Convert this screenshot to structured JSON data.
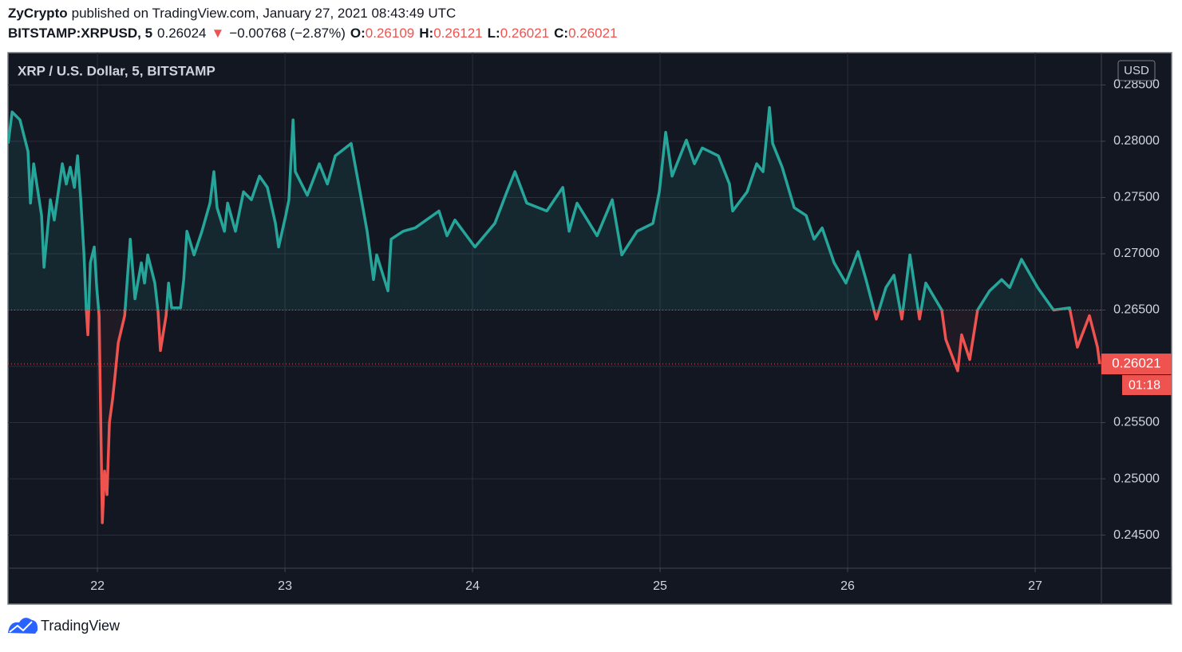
{
  "header": {
    "publisher": "ZyCrypto",
    "published": "published on TradingView.com, January 27, 2021 08:43:49 UTC",
    "quote": [
      {
        "text": "BITSTAMP:XRPUSD, 5",
        "color": "#131722",
        "bold": true
      },
      {
        "text": "0.26024",
        "color": "#131722",
        "bold": false
      },
      {
        "text": "▼",
        "color": "#ef5350",
        "bold": false
      },
      {
        "text": "−0.00768 (−2.87%)",
        "color": "#131722",
        "bold": false
      },
      {
        "text": "O:",
        "color": "#131722",
        "bold": true
      },
      {
        "text": "0.26109",
        "color": "#ef5350",
        "bold": false
      },
      {
        "text": "H:",
        "color": "#131722",
        "bold": true
      },
      {
        "text": "0.26121",
        "color": "#ef5350",
        "bold": false
      },
      {
        "text": "L:",
        "color": "#131722",
        "bold": true
      },
      {
        "text": "0.26021",
        "color": "#ef5350",
        "bold": false
      },
      {
        "text": "C:",
        "color": "#131722",
        "bold": true
      },
      {
        "text": "0.26021",
        "color": "#ef5350",
        "bold": false
      }
    ]
  },
  "footer": {
    "brand": "TradingView"
  },
  "chart_data": {
    "type": "line",
    "title": "XRP / U.S. Dollar, 5, BITSTAMP",
    "currency": "USD",
    "countdown": "01:18",
    "baseline": 0.265,
    "below_color": "#ef5350",
    "grid": true,
    "xlim": [
      21.523,
      27.353
    ],
    "xticks": [
      22,
      23,
      24,
      25,
      26,
      27
    ],
    "ylim": [
      0.24206,
      0.28787
    ],
    "yticks": [
      {
        "value": 0.245,
        "label": "0.24500"
      },
      {
        "value": 0.25,
        "label": "0.25000"
      },
      {
        "value": 0.255,
        "label": "0.25500"
      },
      {
        "value": 0.26,
        "label": "0.26000"
      },
      {
        "value": 0.265,
        "label": "0.26500"
      },
      {
        "value": 0.27,
        "label": "0.27000"
      },
      {
        "value": 0.275,
        "label": "0.27500"
      },
      {
        "value": 0.28,
        "label": "0.28000"
      },
      {
        "value": 0.285,
        "label": "0.28500"
      }
    ],
    "x": [
      21.524,
      21.545,
      21.587,
      21.63,
      21.643,
      21.66,
      21.702,
      21.715,
      21.749,
      21.77,
      21.813,
      21.834,
      21.855,
      21.877,
      21.894,
      21.911,
      21.928,
      21.94,
      21.949,
      21.962,
      21.983,
      21.996,
      22.009,
      22.017,
      22.026,
      22.038,
      22.051,
      22.064,
      22.081,
      22.094,
      22.111,
      22.145,
      22.162,
      22.175,
      22.2,
      22.234,
      22.251,
      22.268,
      22.306,
      22.323,
      22.336,
      22.366,
      22.379,
      22.396,
      22.443,
      22.46,
      22.477,
      22.515,
      22.557,
      22.6,
      22.621,
      22.638,
      22.677,
      22.694,
      22.736,
      22.779,
      22.821,
      22.864,
      22.906,
      22.949,
      22.966,
      23.004,
      23.021,
      23.043,
      23.055,
      23.119,
      23.183,
      23.226,
      23.268,
      23.353,
      23.396,
      23.438,
      23.472,
      23.489,
      23.549,
      23.566,
      23.63,
      23.694,
      23.821,
      23.864,
      23.906,
      24.013,
      24.119,
      24.183,
      24.226,
      24.289,
      24.396,
      24.481,
      24.515,
      24.557,
      24.664,
      24.745,
      24.796,
      24.877,
      24.962,
      24.996,
      25.03,
      25.064,
      25.14,
      25.183,
      25.225,
      25.311,
      25.37,
      25.387,
      25.464,
      25.515,
      25.549,
      25.583,
      25.6,
      25.651,
      25.715,
      25.779,
      25.821,
      25.864,
      25.928,
      25.991,
      26.055,
      26.098,
      26.153,
      26.204,
      26.247,
      26.289,
      26.332,
      26.383,
      26.417,
      26.502,
      26.523,
      26.587,
      26.608,
      26.651,
      26.693,
      26.757,
      26.821,
      26.864,
      26.927,
      27.013,
      27.098,
      27.183,
      27.225,
      27.289,
      27.332,
      27.344
    ],
    "series": [
      {
        "name": "XRPUSD",
        "color": "#26a69a",
        "values": [
          0.2798,
          0.2826,
          0.2819,
          0.2791,
          0.2745,
          0.278,
          0.2734,
          0.2688,
          0.2748,
          0.273,
          0.278,
          0.2762,
          0.2777,
          0.2759,
          0.2787,
          0.2748,
          0.27,
          0.2652,
          0.2628,
          0.2692,
          0.2706,
          0.267,
          0.2645,
          0.2557,
          0.2461,
          0.2507,
          0.2486,
          0.255,
          0.2571,
          0.2592,
          0.2621,
          0.2645,
          0.2684,
          0.2713,
          0.266,
          0.2692,
          0.2674,
          0.2699,
          0.2674,
          0.2649,
          0.2614,
          0.2645,
          0.2674,
          0.2652,
          0.2652,
          0.2677,
          0.272,
          0.2699,
          0.272,
          0.2745,
          0.2773,
          0.2741,
          0.272,
          0.2745,
          0.272,
          0.2755,
          0.2748,
          0.2769,
          0.2759,
          0.2727,
          0.2706,
          0.2734,
          0.2748,
          0.2819,
          0.2773,
          0.2752,
          0.278,
          0.2762,
          0.2787,
          0.2798,
          0.2759,
          0.272,
          0.2677,
          0.2699,
          0.2667,
          0.2713,
          0.272,
          0.2723,
          0.2738,
          0.2716,
          0.273,
          0.2706,
          0.2727,
          0.2755,
          0.2773,
          0.2745,
          0.2738,
          0.2759,
          0.272,
          0.2745,
          0.2716,
          0.2748,
          0.2699,
          0.272,
          0.2727,
          0.2755,
          0.2808,
          0.2769,
          0.2801,
          0.278,
          0.2794,
          0.2787,
          0.2762,
          0.2738,
          0.2755,
          0.278,
          0.2773,
          0.283,
          0.2798,
          0.2777,
          0.2741,
          0.2734,
          0.2713,
          0.2723,
          0.2692,
          0.2674,
          0.2702,
          0.2677,
          0.2642,
          0.267,
          0.2681,
          0.2642,
          0.2699,
          0.2642,
          0.2674,
          0.265,
          0.2624,
          0.2596,
          0.2628,
          0.2606,
          0.265,
          0.2667,
          0.2677,
          0.267,
          0.2695,
          0.267,
          0.265,
          0.2652,
          0.2617,
          0.2645,
          0.2617,
          0.26021
        ]
      }
    ]
  }
}
